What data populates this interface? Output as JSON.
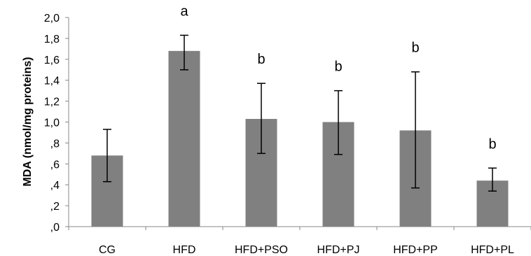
{
  "chart_data": {
    "type": "bar",
    "categories": [
      "CG",
      "HFD",
      "HFD+PSO",
      "HFD+PJ",
      "HFD+PP",
      "HFD+PL"
    ],
    "values": [
      0.68,
      1.68,
      1.03,
      1.0,
      0.92,
      0.44
    ],
    "error_low": [
      0.43,
      1.5,
      0.7,
      0.69,
      0.37,
      0.34
    ],
    "error_high": [
      0.93,
      1.83,
      1.37,
      1.3,
      1.48,
      0.56
    ],
    "significance": [
      "",
      "a",
      "b",
      "b",
      "b",
      "b"
    ],
    "ylabel": "MDA (nmol/mg proteins)",
    "xlabel": "",
    "ylim": [
      0,
      2.0
    ],
    "yticks": [
      ",0",
      ",2",
      ",4",
      ",6",
      ",8",
      "1,0",
      "1,2",
      "1,4",
      "1,6",
      "1,8",
      "2,0"
    ],
    "bar_color": "#808080",
    "grid": false,
    "legend": "none"
  }
}
